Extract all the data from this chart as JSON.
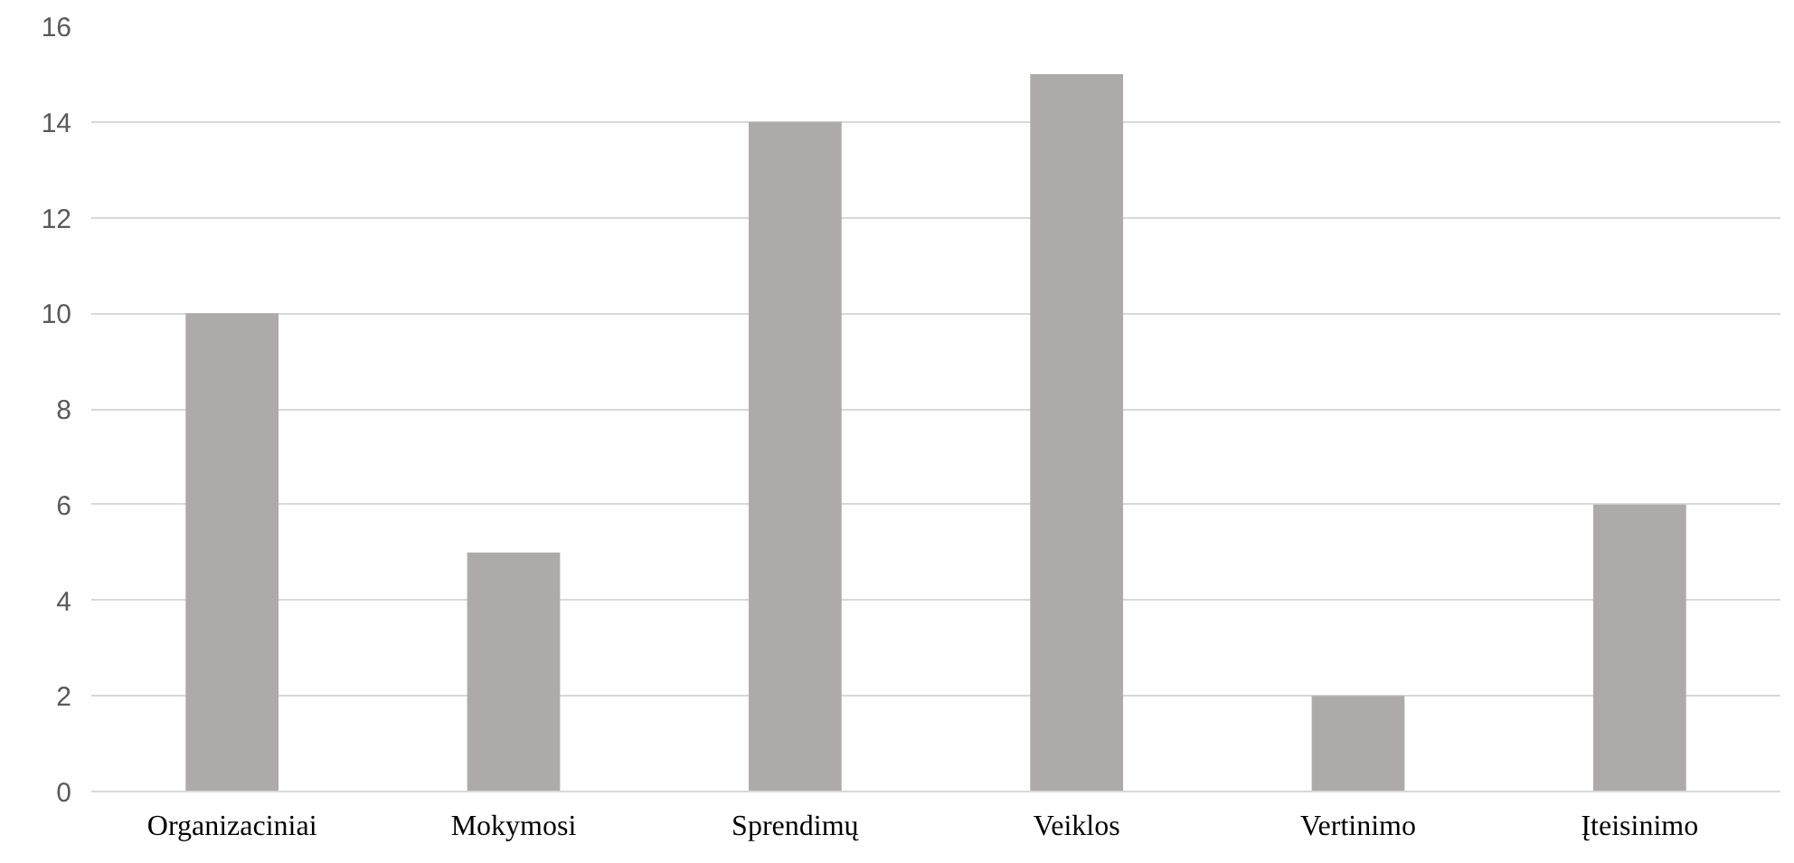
{
  "chart_data": {
    "type": "bar",
    "categories": [
      "Organizaciniai",
      "Mokymosi",
      "Sprendimų",
      "Veiklos",
      "Vertinimo",
      "Įteisinimo"
    ],
    "values": [
      10,
      5,
      14,
      15,
      2,
      6
    ],
    "color": "#aeaaaa",
    "ylim": [
      0,
      16
    ],
    "yticks": [
      0,
      2,
      4,
      6,
      8,
      10,
      12,
      14,
      16
    ],
    "grid": "y"
  }
}
